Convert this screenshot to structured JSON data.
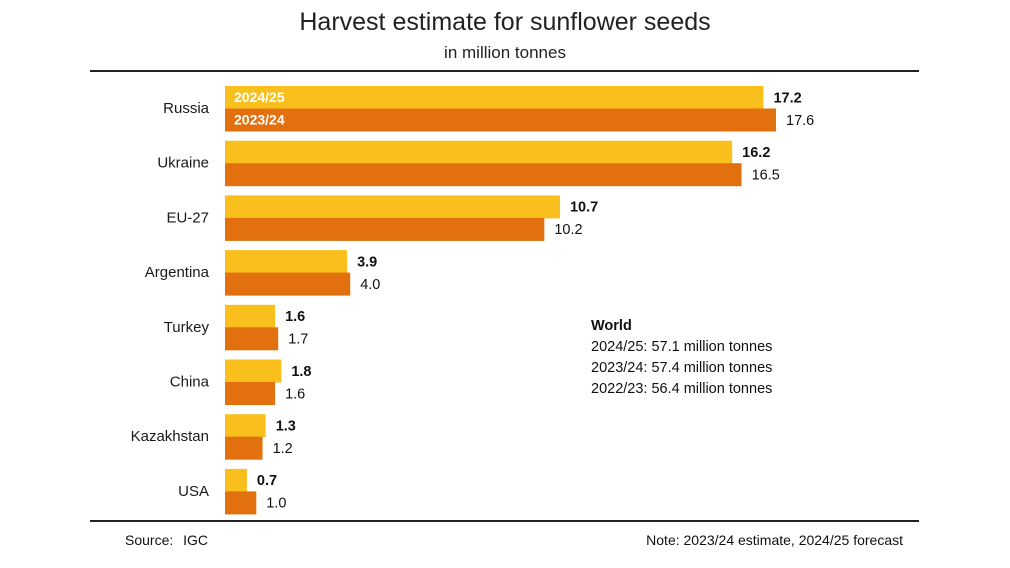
{
  "chart_data": {
    "type": "bar",
    "orientation": "horizontal",
    "title": "Harvest estimate for sunflower seeds",
    "subtitle": "in million tonnes",
    "categories": [
      "Russia",
      "Ukraine",
      "EU-27",
      "Argentina",
      "Turkey",
      "China",
      "Kazakhstan",
      "USA"
    ],
    "series": [
      {
        "name": "2024/25",
        "color": "#f9bf1c",
        "values": [
          17.2,
          16.2,
          10.7,
          3.9,
          1.6,
          1.8,
          1.3,
          0.7
        ],
        "labels": [
          "17.2",
          "16.2",
          "10.7",
          "3.9",
          "1.6",
          "1.8",
          "1.3",
          "0.7"
        ]
      },
      {
        "name": "2023/24",
        "color": "#e2700f",
        "values": [
          17.6,
          16.5,
          10.2,
          4.0,
          1.7,
          1.6,
          1.2,
          1.0
        ],
        "labels": [
          "17.6",
          "16.5",
          "10.2",
          "4.0",
          "1.7",
          "1.6",
          "1.2",
          "1.0"
        ]
      }
    ],
    "xlim": [
      0,
      17.6
    ],
    "grid": false,
    "legend": "inside-first-bars"
  },
  "world": {
    "heading": "World",
    "lines": [
      "2024/25: 57.1 million tonnes",
      "2023/24: 57.4 million tonnes",
      "2022/23: 56.4 million tonnes"
    ]
  },
  "footer": {
    "source_label": "Source:",
    "source_value": "IGC",
    "note": "Note: 2023/24 estimate, 2024/25 forecast"
  }
}
